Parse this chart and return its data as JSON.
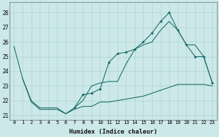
{
  "xlabel": "Humidex (Indice chaleur)",
  "bg_color": "#cce8e8",
  "line_color": "#1a6b6b",
  "grid_color": "#aad4d0",
  "xlim": [
    -0.5,
    23.5
  ],
  "ylim": [
    20.7,
    28.7
  ],
  "yticks": [
    21,
    22,
    23,
    24,
    25,
    26,
    27,
    28
  ],
  "xticks": [
    0,
    1,
    2,
    3,
    4,
    5,
    6,
    7,
    8,
    9,
    10,
    11,
    12,
    13,
    14,
    15,
    16,
    17,
    18,
    19,
    20,
    21,
    22,
    23
  ],
  "curve_outer_x": [
    0,
    1,
    2,
    3,
    4,
    5,
    6,
    7,
    8,
    9,
    10,
    11,
    12,
    13,
    14,
    15,
    16,
    17,
    18,
    19,
    20,
    21,
    22,
    23
  ],
  "curve_outer_y": [
    25.7,
    23.5,
    22.0,
    21.5,
    21.5,
    21.5,
    21.1,
    21.5,
    22.0,
    23.0,
    23.2,
    23.3,
    23.3,
    24.5,
    25.5,
    25.8,
    26.0,
    26.8,
    27.4,
    26.8,
    25.8,
    25.8,
    25.0,
    23.2
  ],
  "curve_marker_x": [
    7,
    8,
    9,
    10,
    11,
    12,
    13,
    14,
    15,
    16,
    17,
    18,
    19,
    20,
    21,
    22,
    23
  ],
  "curve_marker_y": [
    21.5,
    22.4,
    22.5,
    22.8,
    24.6,
    25.2,
    25.3,
    25.5,
    26.0,
    26.6,
    27.4,
    28.0,
    26.8,
    25.8,
    25.0,
    25.0,
    23.2
  ],
  "curve_bottom_x": [
    1,
    2,
    3,
    4,
    5,
    6,
    7,
    8,
    9,
    10,
    11,
    12,
    13,
    14,
    15,
    16,
    17,
    18,
    19,
    20,
    21,
    22,
    23
  ],
  "curve_bottom_y": [
    23.5,
    21.9,
    21.4,
    21.4,
    21.4,
    21.1,
    21.4,
    21.6,
    21.6,
    21.9,
    21.9,
    22.0,
    22.1,
    22.2,
    22.3,
    22.5,
    22.7,
    22.9,
    23.1,
    23.1,
    23.1,
    23.1,
    23.0
  ]
}
